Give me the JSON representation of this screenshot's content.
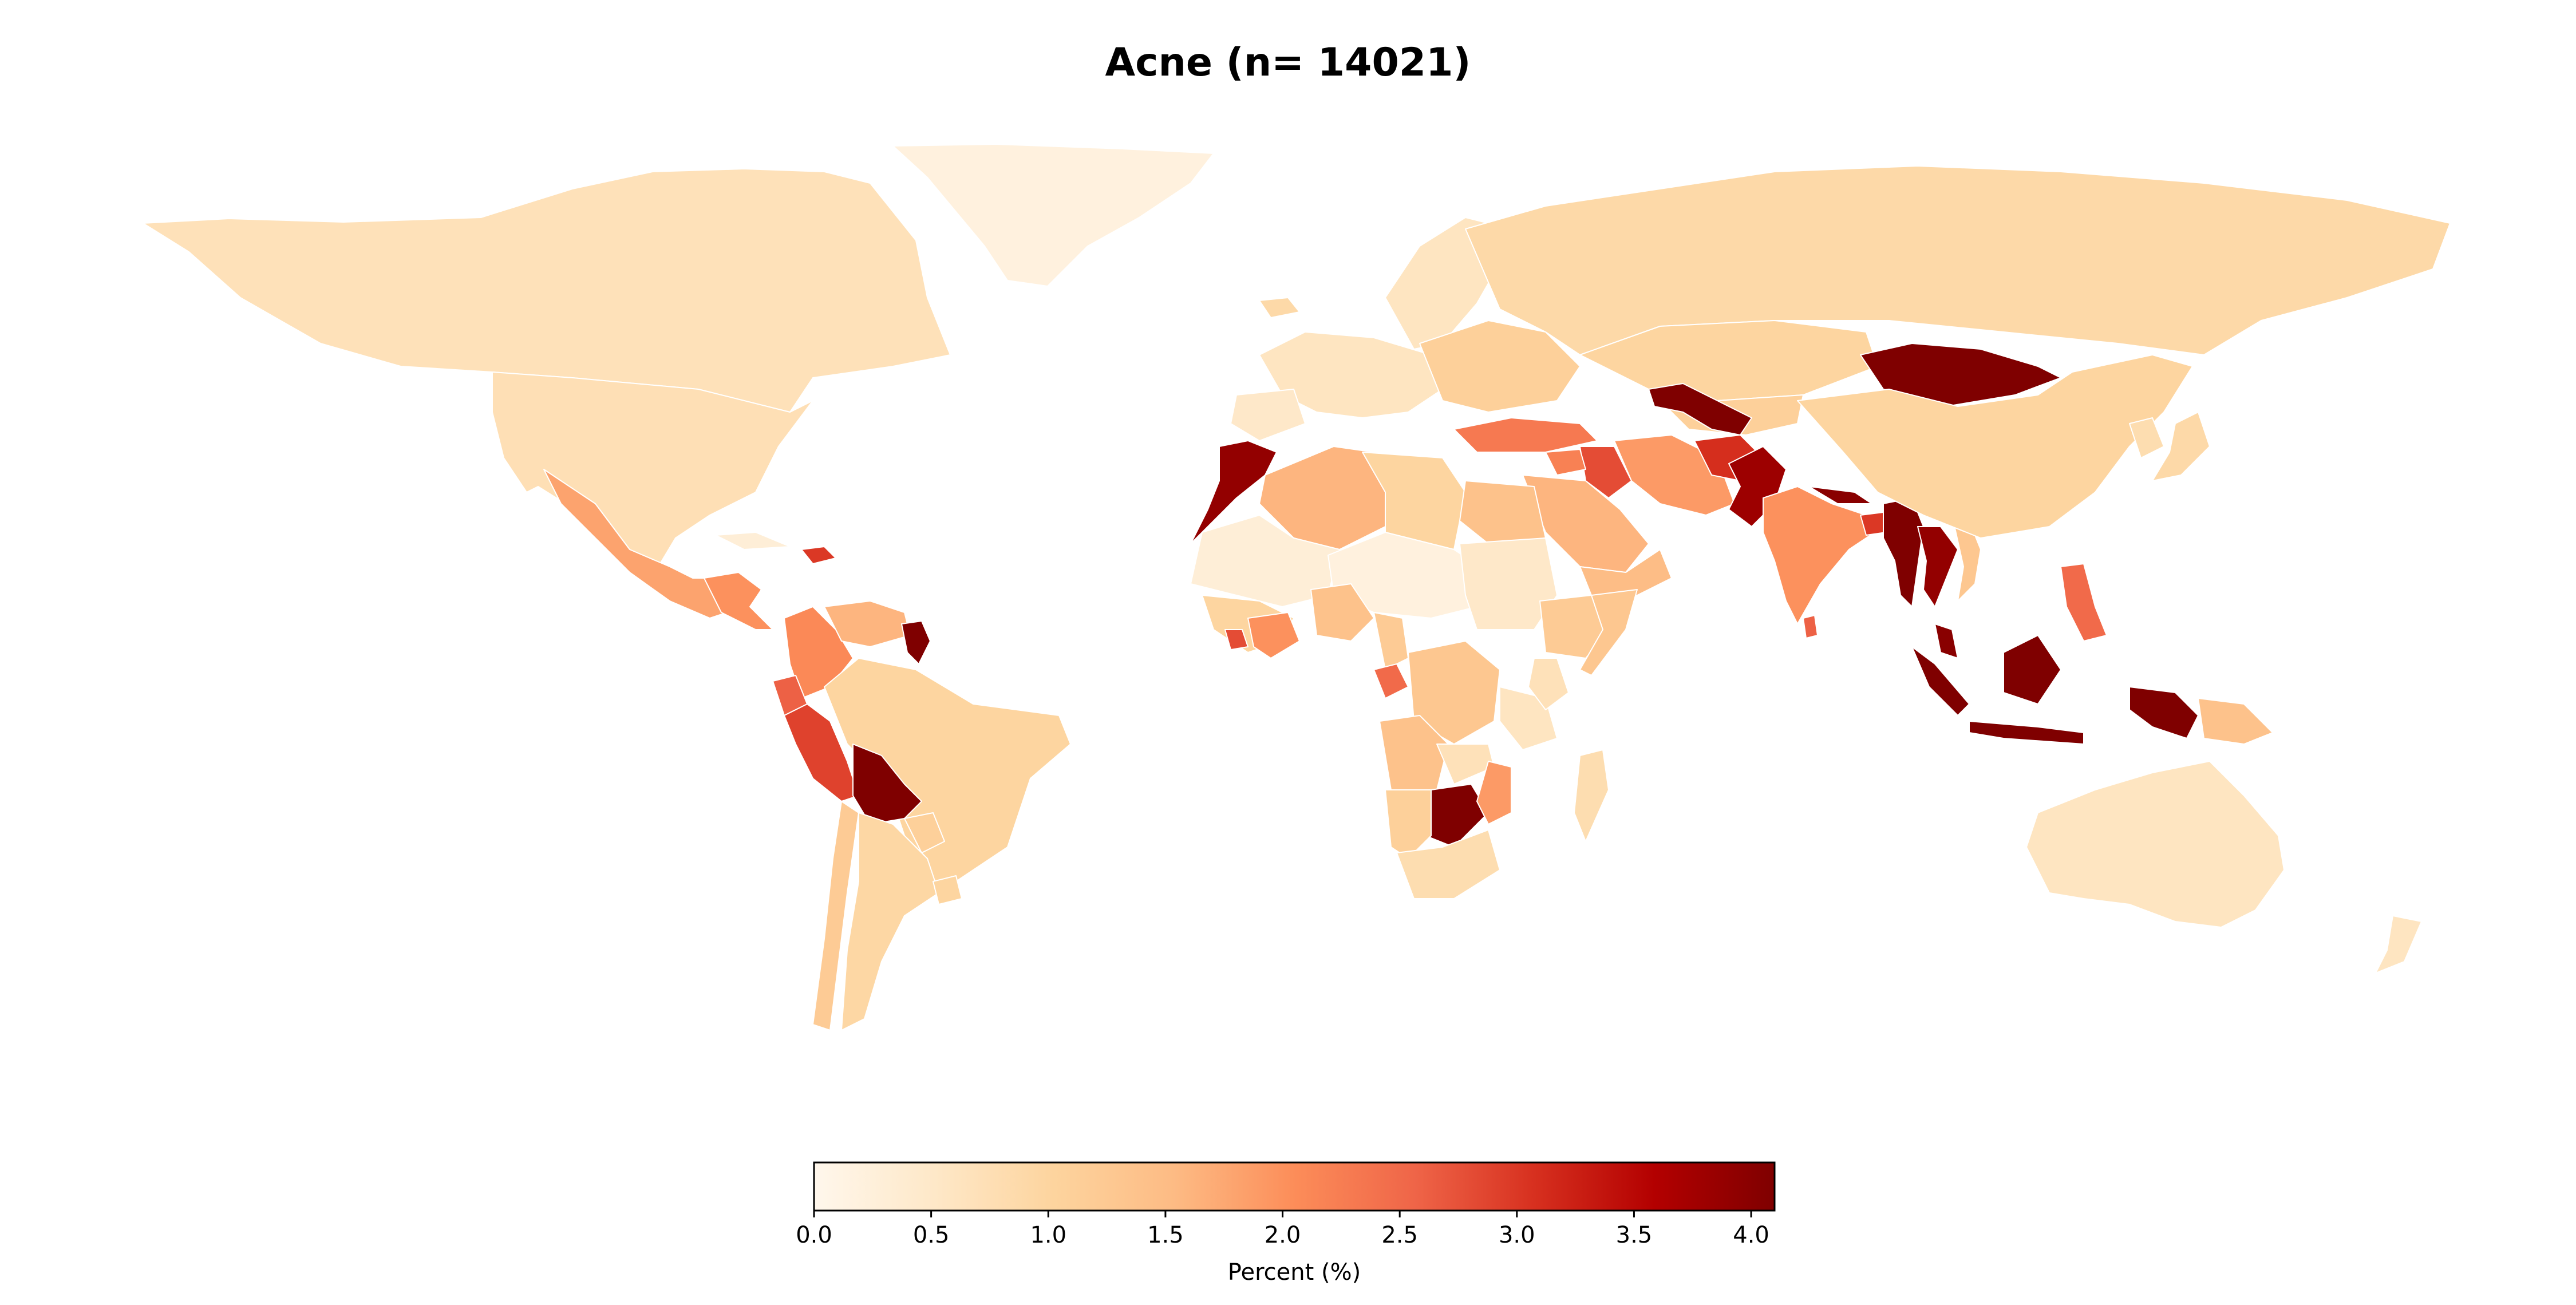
{
  "chart_data": {
    "type": "choropleth",
    "title": "Acne (n= 14021)",
    "colorbar": {
      "label": "Percent (%)",
      "min": 0.0,
      "max": 4.1,
      "ticks": [
        "0.0",
        "0.5",
        "1.0",
        "1.5",
        "2.0",
        "2.5",
        "3.0",
        "3.5",
        "4.0"
      ],
      "colormap": "OrRd",
      "stops": [
        "#fff7ec",
        "#fee8c8",
        "#fdd49e",
        "#fdbb84",
        "#fc8d59",
        "#ef6548",
        "#d7301f",
        "#b30000",
        "#7f0000"
      ]
    },
    "regions": [
      {
        "name": "Canada",
        "value": 0.7
      },
      {
        "name": "United States",
        "value": 0.75
      },
      {
        "name": "Greenland",
        "value": 0.2
      },
      {
        "name": "Mexico",
        "value": 1.8
      },
      {
        "name": "Central America",
        "value": 2.0
      },
      {
        "name": "Cuba",
        "value": 0.3
      },
      {
        "name": "Dominican Republic",
        "value": 3.0
      },
      {
        "name": "Colombia",
        "value": 2.1
      },
      {
        "name": "Venezuela",
        "value": 1.6
      },
      {
        "name": "Suriname",
        "value": 4.1
      },
      {
        "name": "Ecuador",
        "value": 2.6
      },
      {
        "name": "Peru",
        "value": 2.9
      },
      {
        "name": "Brazil",
        "value": 1.0
      },
      {
        "name": "Bolivia",
        "value": 4.1
      },
      {
        "name": "Paraguay",
        "value": 1.1
      },
      {
        "name": "Chile",
        "value": 1.2
      },
      {
        "name": "Argentina",
        "value": 0.95
      },
      {
        "name": "Uruguay",
        "value": 1.0
      },
      {
        "name": "Iceland",
        "value": 0.9
      },
      {
        "name": "Scandinavia",
        "value": 0.6
      },
      {
        "name": "Western Europe",
        "value": 0.6
      },
      {
        "name": "Eastern Europe",
        "value": 1.1
      },
      {
        "name": "Russia",
        "value": 0.9
      },
      {
        "name": "Portugal & Spain",
        "value": 0.5
      },
      {
        "name": "Turkey",
        "value": 2.3
      },
      {
        "name": "Iraq",
        "value": 2.8
      },
      {
        "name": "Syria",
        "value": 2.2
      },
      {
        "name": "Iran",
        "value": 1.9
      },
      {
        "name": "Saudi Arabia",
        "value": 1.6
      },
      {
        "name": "Yemen & Oman",
        "value": 1.5
      },
      {
        "name": "Kazakhstan",
        "value": 1.0
      },
      {
        "name": "Central Asia",
        "value": 1.1
      },
      {
        "name": "Uzbekistan / Turkmenistan",
        "value": 4.1
      },
      {
        "name": "Afghanistan",
        "value": 3.1
      },
      {
        "name": "Pakistan",
        "value": 3.8
      },
      {
        "name": "India",
        "value": 2.0
      },
      {
        "name": "Sri Lanka",
        "value": 2.6
      },
      {
        "name": "Nepal / Bhutan",
        "value": 4.0
      },
      {
        "name": "Bangladesh",
        "value": 3.0
      },
      {
        "name": "Myanmar",
        "value": 4.1
      },
      {
        "name": "Thailand",
        "value": 3.9
      },
      {
        "name": "Vietnam",
        "value": 1.3
      },
      {
        "name": "Malaysia",
        "value": 4.0
      },
      {
        "name": "Indonesia",
        "value": 4.1
      },
      {
        "name": "Philippines",
        "value": 2.5
      },
      {
        "name": "Papua New Guinea",
        "value": 1.4
      },
      {
        "name": "Mongolia",
        "value": 4.1
      },
      {
        "name": "China",
        "value": 1.0
      },
      {
        "name": "Japan",
        "value": 0.9
      },
      {
        "name": "Korea",
        "value": 0.8
      },
      {
        "name": "Australia",
        "value": 0.6
      },
      {
        "name": "New Zealand",
        "value": 0.6
      },
      {
        "name": "Morocco",
        "value": 3.9
      },
      {
        "name": "Algeria",
        "value": 1.6
      },
      {
        "name": "Libya",
        "value": 1.0
      },
      {
        "name": "Egypt",
        "value": 1.4
      },
      {
        "name": "Mauritania / Mali",
        "value": 0.3
      },
      {
        "name": "Niger / Chad",
        "value": 0.2
      },
      {
        "name": "Sudan",
        "value": 0.5
      },
      {
        "name": "Ethiopia",
        "value": 1.2
      },
      {
        "name": "Somalia",
        "value": 1.3
      },
      {
        "name": "West Africa",
        "value": 1.0
      },
      {
        "name": "Ghana / Ivory Coast",
        "value": 2.0
      },
      {
        "name": "Liberia",
        "value": 2.8
      },
      {
        "name": "Nigeria",
        "value": 1.4
      },
      {
        "name": "Cameroon",
        "value": 1.2
      },
      {
        "name": "Gabon",
        "value": 2.5
      },
      {
        "name": "Congo (DRC)",
        "value": 1.3
      },
      {
        "name": "Tanzania",
        "value": 0.6
      },
      {
        "name": "Kenya",
        "value": 0.7
      },
      {
        "name": "Angola",
        "value": 1.4
      },
      {
        "name": "Zambia",
        "value": 0.7
      },
      {
        "name": "Zimbabwe",
        "value": 4.1
      },
      {
        "name": "Mozambique",
        "value": 1.9
      },
      {
        "name": "Namibia / Botswana",
        "value": 1.1
      },
      {
        "name": "South Africa",
        "value": 0.8
      },
      {
        "name": "Madagascar",
        "value": 0.8
      }
    ]
  }
}
